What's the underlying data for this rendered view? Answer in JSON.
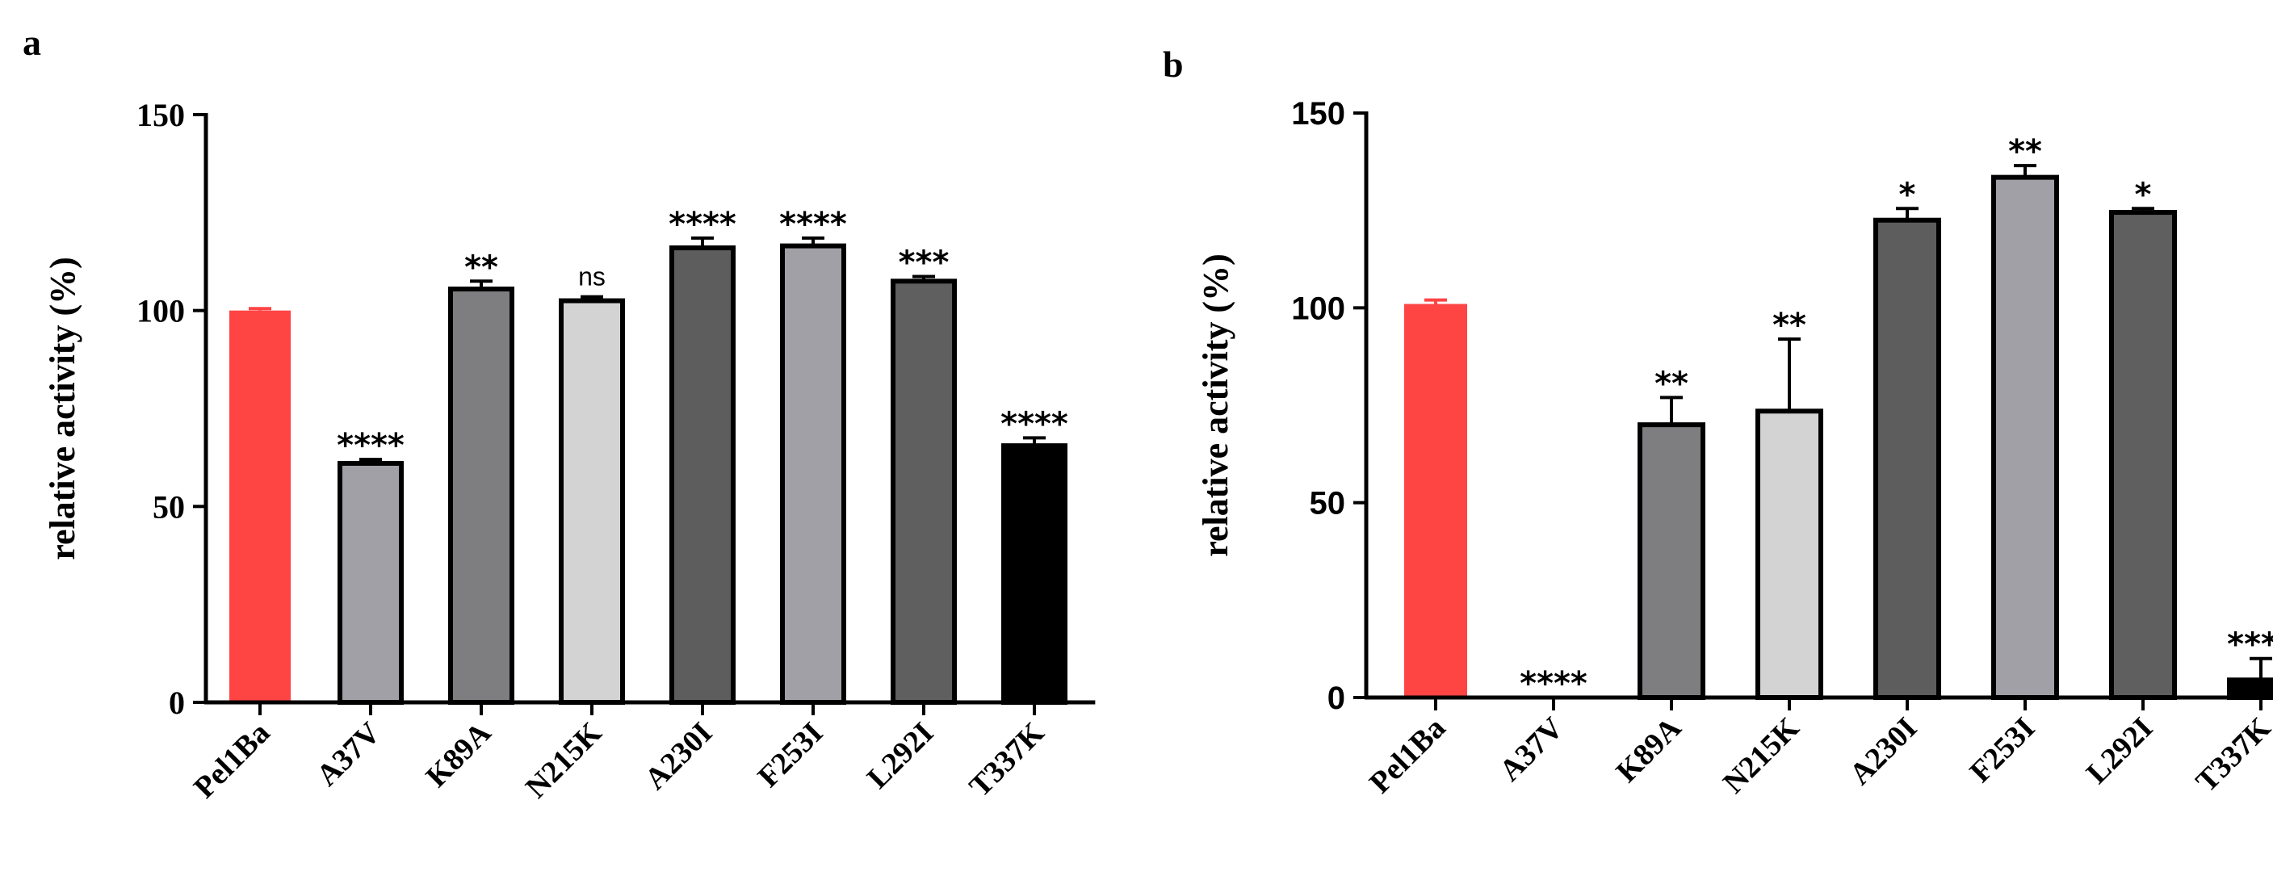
{
  "chart_data": [
    {
      "type": "bar",
      "panel": "a",
      "title": "",
      "xlabel": "",
      "ylabel": "relative activity (%)",
      "ylim": [
        0,
        150
      ],
      "yticks": [
        0,
        50,
        100,
        150
      ],
      "grid": false,
      "categories": [
        "Pel1Ba",
        "A37V",
        "K89A",
        "N215K",
        "A230I",
        "F253I",
        "L292I",
        "T337K"
      ],
      "values": [
        100,
        61,
        105.5,
        102.5,
        116,
        116.5,
        107.5,
        65.5
      ],
      "errors": [
        0.5,
        1,
        2,
        1,
        2.5,
        2,
        1.2,
        2
      ],
      "significance": [
        "",
        "****",
        "**",
        "ns",
        "****",
        "****",
        "***",
        "****"
      ],
      "colors": [
        "#FF4444",
        "#A0A0A6",
        "#7E7E80",
        "#D3D3D3",
        "#5D5D5D",
        "#A0A0A6",
        "#5F5F5F",
        "#000000"
      ]
    },
    {
      "type": "bar",
      "panel": "b",
      "title": "",
      "xlabel": "",
      "ylabel": "relative activity (%)",
      "ylim": [
        0,
        150
      ],
      "yticks": [
        0,
        50,
        100,
        150
      ],
      "grid": false,
      "categories": [
        "Pel1Ba",
        "A37V",
        "K89A",
        "N215K",
        "A230I",
        "F253I",
        "L292I",
        "T337K"
      ],
      "values": [
        101,
        0,
        70,
        73.5,
        122.5,
        133.5,
        124.5,
        4.5
      ],
      "errors": [
        1,
        0,
        7,
        18.5,
        3,
        3,
        1,
        5.5
      ],
      "significance": [
        "",
        "****",
        "**",
        "**",
        "*",
        "**",
        "*",
        "****"
      ],
      "colors": [
        "#FF4444",
        "#A0A0A6",
        "#7E7E80",
        "#D3D3D3",
        "#5D5D5D",
        "#A0A0A6",
        "#5F5F5F",
        "#000000"
      ]
    }
  ]
}
